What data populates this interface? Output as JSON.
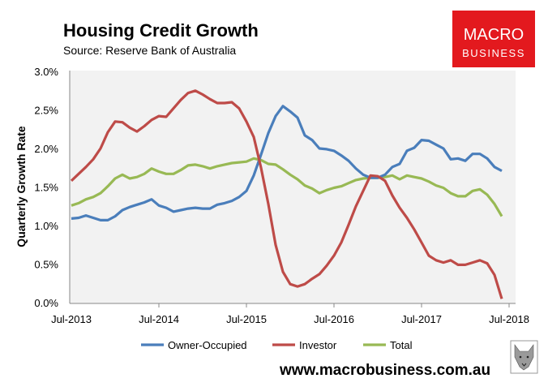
{
  "header": {
    "title": "Housing Credit Growth",
    "subtitle": "Source: Reserve Bank of Australia"
  },
  "logo": {
    "line1": "MACRO",
    "line2": "BUSINESS",
    "color": "#e3191e"
  },
  "footer": {
    "url": "www.macrobusiness.com.au",
    "mascot_icon": "wolf-icon"
  },
  "chart_data": {
    "type": "line",
    "title": "Housing Credit Growth",
    "xlabel": "",
    "ylabel": "Quarterly Growth Rate",
    "ylim": [
      0,
      3.0
    ],
    "yticks": [
      "0.0%",
      "0.5%",
      "1.0%",
      "1.5%",
      "2.0%",
      "2.5%",
      "3.0%"
    ],
    "ytick_values": [
      0,
      0.5,
      1.0,
      1.5,
      2.0,
      2.5,
      3.0
    ],
    "xticks": [
      "Jul-2013",
      "Jul-2014",
      "Jul-2015",
      "Jul-2016",
      "Jul-2017",
      "Jul-2018"
    ],
    "x_start": "Jul-2013",
    "x_frequency": "monthly",
    "x_range_months": [
      0,
      60
    ],
    "grid": false,
    "legend": "bottom",
    "series": [
      {
        "name": "Owner-Occupied",
        "color": "#4a7ebb",
        "values": [
          1.09,
          1.1,
          1.13,
          1.1,
          1.07,
          1.07,
          1.12,
          1.2,
          1.24,
          1.27,
          1.3,
          1.34,
          1.26,
          1.23,
          1.18,
          1.2,
          1.22,
          1.23,
          1.22,
          1.22,
          1.27,
          1.29,
          1.32,
          1.37,
          1.45,
          1.65,
          1.92,
          2.2,
          2.42,
          2.55,
          2.48,
          2.4,
          2.17,
          2.11,
          2.0,
          1.99,
          1.97,
          1.91,
          1.84,
          1.74,
          1.66,
          1.62,
          1.62,
          1.66,
          1.76,
          1.8,
          1.97,
          2.01,
          2.11,
          2.1,
          2.05,
          2.0,
          1.86,
          1.87,
          1.84,
          1.93,
          1.93,
          1.87,
          1.76,
          1.71
        ]
      },
      {
        "name": "Investor",
        "color": "#be4b48",
        "values": [
          1.58,
          1.67,
          1.76,
          1.86,
          2.0,
          2.21,
          2.35,
          2.34,
          2.27,
          2.22,
          2.29,
          2.37,
          2.42,
          2.41,
          2.52,
          2.63,
          2.72,
          2.75,
          2.7,
          2.64,
          2.59,
          2.59,
          2.6,
          2.52,
          2.35,
          2.15,
          1.75,
          1.28,
          0.75,
          0.4,
          0.24,
          0.21,
          0.24,
          0.31,
          0.37,
          0.48,
          0.61,
          0.78,
          1.01,
          1.25,
          1.45,
          1.65,
          1.64,
          1.58,
          1.39,
          1.23,
          1.1,
          0.95,
          0.78,
          0.61,
          0.55,
          0.52,
          0.55,
          0.49,
          0.49,
          0.52,
          0.55,
          0.51,
          0.36,
          0.05
        ]
      },
      {
        "name": "Total",
        "color": "#98b954",
        "values": [
          1.26,
          1.29,
          1.34,
          1.37,
          1.42,
          1.51,
          1.61,
          1.66,
          1.61,
          1.63,
          1.67,
          1.74,
          1.7,
          1.67,
          1.67,
          1.72,
          1.78,
          1.79,
          1.77,
          1.74,
          1.77,
          1.79,
          1.81,
          1.82,
          1.83,
          1.87,
          1.85,
          1.8,
          1.79,
          1.73,
          1.66,
          1.6,
          1.52,
          1.48,
          1.42,
          1.46,
          1.49,
          1.51,
          1.55,
          1.59,
          1.61,
          1.62,
          1.62,
          1.63,
          1.65,
          1.6,
          1.65,
          1.63,
          1.61,
          1.57,
          1.52,
          1.49,
          1.42,
          1.38,
          1.38,
          1.45,
          1.47,
          1.4,
          1.28,
          1.12
        ]
      }
    ]
  }
}
